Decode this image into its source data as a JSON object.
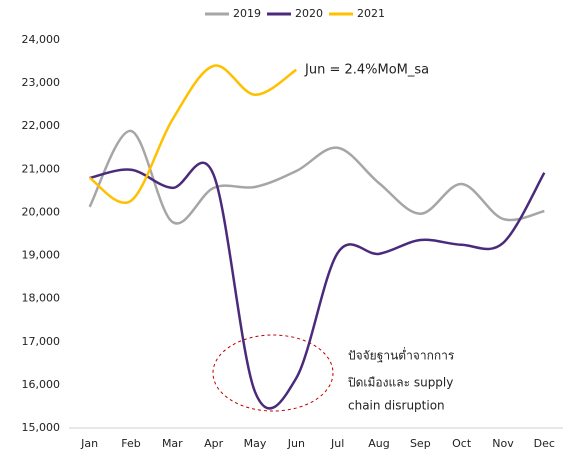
{
  "chart_data": {
    "type": "line",
    "categories": [
      "Jan",
      "Feb",
      "Mar",
      "Apr",
      "May",
      "Jun",
      "Jul",
      "Aug",
      "Sep",
      "Oct",
      "Nov",
      "Dec"
    ],
    "series": [
      {
        "name": "2019",
        "color": "#a6a6a6",
        "values": [
          20130,
          21890,
          19780,
          20570,
          20590,
          20960,
          21500,
          20680,
          19970,
          20660,
          19850,
          20030
        ]
      },
      {
        "name": "2020",
        "color": "#4b2a7b",
        "values": [
          20800,
          20990,
          20570,
          20870,
          15840,
          16160,
          19060,
          19040,
          19360,
          19250,
          19290,
          20920
        ]
      },
      {
        "name": "2021",
        "color": "#ffc000",
        "values": [
          20800,
          20270,
          22150,
          23400,
          22730,
          23310,
          null,
          null,
          null,
          null,
          null,
          null
        ]
      }
    ],
    "ylim": [
      15000,
      24000
    ],
    "yticks": [
      {
        "value": 15000,
        "label": "15,000"
      },
      {
        "value": 16000,
        "label": "16,000"
      },
      {
        "value": 17000,
        "label": "17,000"
      },
      {
        "value": 18000,
        "label": "18,000"
      },
      {
        "value": 19000,
        "label": "19,000"
      },
      {
        "value": 20000,
        "label": "20,000"
      },
      {
        "value": 21000,
        "label": "21,000"
      },
      {
        "value": 22000,
        "label": "22,000"
      },
      {
        "value": 23000,
        "label": "23,000"
      },
      {
        "value": 24000,
        "label": "24,000"
      }
    ],
    "annotations": [
      "Jun = 2.4%MoM_sa",
      [
        "ปัจจัยฐานต่ำจากการ",
        "ปิดเมืองและ supply",
        "chain disruption"
      ]
    ],
    "grid": false,
    "legend": "top"
  }
}
